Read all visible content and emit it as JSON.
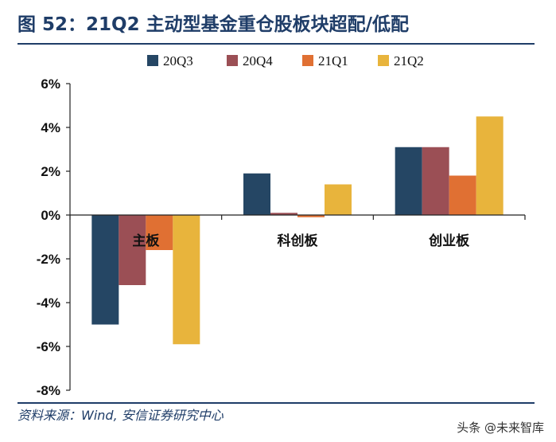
{
  "header": {
    "title": "图 52：21Q2 主动型基金重仓股板块超配/低配"
  },
  "footer": {
    "source": "资料来源：Wind, 安信证券研究中心",
    "watermark": "头条 @未来智库"
  },
  "chart_data": {
    "type": "bar",
    "categories": [
      "主板",
      "科创板",
      "创业板"
    ],
    "series": [
      {
        "name": "20Q3",
        "values": [
          -5.0,
          1.9,
          3.1
        ],
        "color": "#254664"
      },
      {
        "name": "20Q4",
        "values": [
          -3.2,
          0.1,
          3.1
        ],
        "color": "#9b4f55"
      },
      {
        "name": "21Q1",
        "values": [
          -1.6,
          -0.1,
          1.8
        ],
        "color": "#e07033"
      },
      {
        "name": "21Q2",
        "values": [
          -5.9,
          1.4,
          4.5
        ],
        "color": "#e8b43c"
      }
    ],
    "ylim": [
      -8,
      6
    ],
    "yticks": [
      -8,
      -6,
      -4,
      -2,
      0,
      2,
      4,
      6
    ],
    "ytick_labels": [
      "-8%",
      "-6%",
      "-4%",
      "-2%",
      "0%",
      "2%",
      "4%",
      "6%"
    ],
    "legend": "top-center",
    "grid": false
  }
}
